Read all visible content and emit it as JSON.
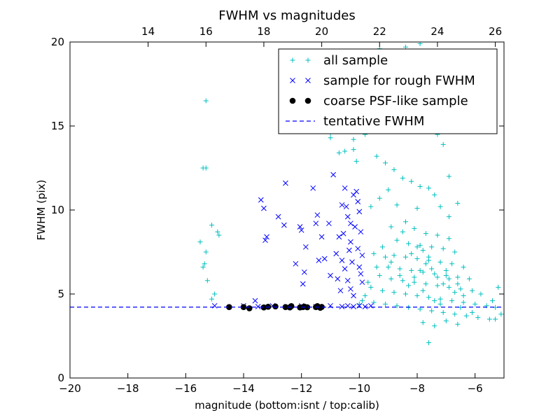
{
  "chart_data": {
    "type": "scatter",
    "title": "FWHM vs magnitudes",
    "xlabel": "magnitude (bottom:isnt / top:calib)",
    "ylabel": "FWHM (pix)",
    "xlim": [
      -20,
      -5
    ],
    "ylim": [
      0,
      20
    ],
    "x_ticks": [
      -20,
      -18,
      -16,
      -14,
      -12,
      -10,
      -8,
      -6
    ],
    "x_tick_labels": [
      "−20",
      "−18",
      "−16",
      "−14",
      "−12",
      "−10",
      "−8",
      "−6"
    ],
    "y_ticks": [
      0,
      5,
      10,
      15,
      20
    ],
    "y_tick_labels": [
      "0",
      "5",
      "10",
      "15",
      "20"
    ],
    "top_axis": {
      "offset": 31.3,
      "ticks": [
        14,
        16,
        18,
        20,
        22,
        24,
        26
      ],
      "tick_labels": [
        "14",
        "16",
        "18",
        "20",
        "22",
        "24",
        "26"
      ]
    },
    "grid": false,
    "legend_position": "top-right",
    "colors": {
      "all_sample": "#00bfbf",
      "rough_sample": "#0000ff",
      "psf_sample": "#000000",
      "tentative": "#0000ff"
    },
    "series": [
      {
        "name": "all sample",
        "marker": "plus",
        "points": [
          [
            -15.3,
            16.5
          ],
          [
            -15.3,
            12.5
          ],
          [
            -15.4,
            12.5
          ],
          [
            -15.5,
            8.1
          ],
          [
            -15.1,
            9.1
          ],
          [
            -14.9,
            8.7
          ],
          [
            -14.85,
            8.5
          ],
          [
            -15.4,
            6.6
          ],
          [
            -15.35,
            6.8
          ],
          [
            -15.25,
            5.8
          ],
          [
            -15.1,
            4.7
          ],
          [
            -15.0,
            5.0
          ],
          [
            -15.3,
            7.5
          ],
          [
            -11.0,
            14.6
          ],
          [
            -11.0,
            14.3
          ],
          [
            -10.5,
            13.5
          ],
          [
            -10.7,
            13.4
          ],
          [
            -10.2,
            13.6
          ],
          [
            -9.8,
            14.5
          ],
          [
            -10.1,
            12.9
          ],
          [
            -9.9,
            14.9
          ],
          [
            -10.2,
            14.2
          ],
          [
            -9.7,
            15.7
          ],
          [
            -9.3,
            19.6
          ],
          [
            -9.0,
            19.3
          ],
          [
            -8.9,
            18.6
          ],
          [
            -8.4,
            19.7
          ],
          [
            -7.9,
            19.9
          ],
          [
            -8.2,
            16.2
          ],
          [
            -8.6,
            17.6
          ],
          [
            -7.6,
            18.2
          ],
          [
            -7.8,
            16.9
          ],
          [
            -7.3,
            14.5
          ],
          [
            -7.1,
            13.9
          ],
          [
            -6.9,
            12.0
          ],
          [
            -9.4,
            13.2
          ],
          [
            -9.1,
            12.8
          ],
          [
            -8.8,
            12.4
          ],
          [
            -8.5,
            11.9
          ],
          [
            -8.2,
            11.7
          ],
          [
            -7.9,
            11.4
          ],
          [
            -7.6,
            11.3
          ],
          [
            -7.4,
            10.9
          ],
          [
            -9.0,
            11.2
          ],
          [
            -9.3,
            10.7
          ],
          [
            -8.7,
            10.3
          ],
          [
            -8.0,
            10.1
          ],
          [
            -7.2,
            10.2
          ],
          [
            -6.6,
            10.4
          ],
          [
            -6.9,
            9.6
          ],
          [
            -9.6,
            10.2
          ],
          [
            -8.4,
            9.3
          ],
          [
            -8.9,
            9.0
          ],
          [
            -8.5,
            8.7
          ],
          [
            -8.1,
            8.9
          ],
          [
            -7.7,
            8.6
          ],
          [
            -7.3,
            8.5
          ],
          [
            -6.9,
            8.3
          ],
          [
            -8.7,
            8.2
          ],
          [
            -8.3,
            8.0
          ],
          [
            -7.9,
            7.9
          ],
          [
            -7.5,
            7.8
          ],
          [
            -7.1,
            7.7
          ],
          [
            -6.7,
            7.5
          ],
          [
            -9.2,
            7.8
          ],
          [
            -9.5,
            7.4
          ],
          [
            -8.8,
            7.3
          ],
          [
            -8.4,
            7.2
          ],
          [
            -8.0,
            7.1
          ],
          [
            -7.6,
            7.0
          ],
          [
            -7.2,
            6.9
          ],
          [
            -6.8,
            6.8
          ],
          [
            -6.4,
            6.6
          ],
          [
            -9.0,
            6.6
          ],
          [
            -8.6,
            6.5
          ],
          [
            -8.2,
            6.4
          ],
          [
            -7.8,
            6.3
          ],
          [
            -7.4,
            6.2
          ],
          [
            -7.0,
            6.1
          ],
          [
            -6.6,
            6.0
          ],
          [
            -6.2,
            5.9
          ],
          [
            -9.3,
            6.1
          ],
          [
            -8.9,
            5.9
          ],
          [
            -8.5,
            5.8
          ],
          [
            -8.1,
            5.7
          ],
          [
            -7.7,
            5.6
          ],
          [
            -7.3,
            5.5
          ],
          [
            -6.9,
            5.4
          ],
          [
            -6.5,
            5.3
          ],
          [
            -6.1,
            5.2
          ],
          [
            -5.8,
            5.0
          ],
          [
            -9.6,
            5.4
          ],
          [
            -9.2,
            5.2
          ],
          [
            -8.8,
            5.1
          ],
          [
            -8.4,
            5.0
          ],
          [
            -8.0,
            4.9
          ],
          [
            -7.6,
            4.8
          ],
          [
            -7.2,
            4.7
          ],
          [
            -6.8,
            4.6
          ],
          [
            -6.4,
            4.5
          ],
          [
            -6.0,
            4.4
          ],
          [
            -5.6,
            4.3
          ],
          [
            -5.3,
            4.2
          ],
          [
            -9.9,
            4.6
          ],
          [
            -9.5,
            4.5
          ],
          [
            -9.1,
            4.4
          ],
          [
            -8.7,
            4.3
          ],
          [
            -8.3,
            4.2
          ],
          [
            -7.9,
            4.1
          ],
          [
            -7.5,
            4.0
          ],
          [
            -7.1,
            3.9
          ],
          [
            -6.7,
            3.8
          ],
          [
            -6.3,
            3.7
          ],
          [
            -5.9,
            3.6
          ],
          [
            -5.5,
            3.5
          ],
          [
            -7.8,
            3.3
          ],
          [
            -7.4,
            3.1
          ],
          [
            -7.0,
            3.4
          ],
          [
            -6.6,
            3.2
          ],
          [
            -7.6,
            2.1
          ],
          [
            -6.1,
            3.9
          ],
          [
            -5.4,
            4.6
          ],
          [
            -5.2,
            5.4
          ],
          [
            -5.1,
            3.8
          ],
          [
            -5.3,
            3.5
          ],
          [
            -7.5,
            6.5
          ],
          [
            -7.6,
            7.2
          ],
          [
            -7.7,
            6.8
          ],
          [
            -7.8,
            7.6
          ],
          [
            -7.9,
            6.4
          ],
          [
            -8.0,
            7.8
          ],
          [
            -8.1,
            6.0
          ],
          [
            -8.2,
            7.4
          ],
          [
            -7.3,
            6.0
          ],
          [
            -7.1,
            5.6
          ],
          [
            -6.9,
            5.9
          ],
          [
            -7.0,
            6.4
          ],
          [
            -6.7,
            5.1
          ],
          [
            -6.6,
            5.6
          ],
          [
            -6.4,
            4.9
          ],
          [
            -6.5,
            4.2
          ],
          [
            -7.2,
            4.4
          ],
          [
            -7.4,
            4.6
          ],
          [
            -7.8,
            5.2
          ],
          [
            -8.3,
            5.5
          ],
          [
            -8.6,
            6.1
          ],
          [
            -8.9,
            6.9
          ],
          [
            -9.1,
            7.2
          ],
          [
            -9.4,
            6.6
          ],
          [
            -9.7,
            5.7
          ],
          [
            -9.8,
            4.9
          ],
          [
            -10.0,
            4.4
          ]
        ]
      },
      {
        "name": "sample for rough FWHM",
        "marker": "x",
        "points": [
          [
            -15.0,
            4.3
          ],
          [
            -14.0,
            4.3
          ],
          [
            -13.5,
            4.25
          ],
          [
            -13.0,
            4.3
          ],
          [
            -12.5,
            4.25
          ],
          [
            -12.0,
            4.3
          ],
          [
            -11.5,
            4.25
          ],
          [
            -11.0,
            4.3
          ],
          [
            -10.6,
            4.25
          ],
          [
            -10.4,
            4.3
          ],
          [
            -10.2,
            4.25
          ],
          [
            -10.0,
            4.3
          ],
          [
            -9.8,
            4.25
          ],
          [
            -9.6,
            4.3
          ],
          [
            -13.4,
            10.6
          ],
          [
            -13.3,
            10.1
          ],
          [
            -12.8,
            9.6
          ],
          [
            -13.2,
            8.4
          ],
          [
            -13.25,
            8.2
          ],
          [
            -12.55,
            11.6
          ],
          [
            -12.6,
            9.1
          ],
          [
            -12.0,
            8.8
          ],
          [
            -12.05,
            9.0
          ],
          [
            -11.85,
            7.8
          ],
          [
            -12.2,
            6.8
          ],
          [
            -11.9,
            6.3
          ],
          [
            -11.95,
            5.6
          ],
          [
            -11.6,
            11.3
          ],
          [
            -11.45,
            9.7
          ],
          [
            -11.5,
            9.2
          ],
          [
            -11.3,
            8.4
          ],
          [
            -11.4,
            7.0
          ],
          [
            -11.2,
            7.1
          ],
          [
            -10.9,
            12.1
          ],
          [
            -11.05,
            9.2
          ],
          [
            -11.0,
            6.1
          ],
          [
            -10.8,
            7.4
          ],
          [
            -10.7,
            8.4
          ],
          [
            -10.6,
            7.0
          ],
          [
            -10.75,
            5.9
          ],
          [
            -10.65,
            5.2
          ],
          [
            -10.5,
            11.3
          ],
          [
            -10.45,
            10.2
          ],
          [
            -10.4,
            9.6
          ],
          [
            -10.55,
            8.6
          ],
          [
            -10.3,
            8.1
          ],
          [
            -10.35,
            7.6
          ],
          [
            -10.5,
            6.5
          ],
          [
            -10.25,
            6.9
          ],
          [
            -10.4,
            5.8
          ],
          [
            -10.3,
            5.3
          ],
          [
            -10.2,
            4.9
          ],
          [
            -10.1,
            11.1
          ],
          [
            -10.05,
            10.5
          ],
          [
            -10.0,
            9.9
          ],
          [
            -10.15,
            9.0
          ],
          [
            -9.95,
            8.7
          ],
          [
            -10.05,
            7.7
          ],
          [
            -9.9,
            7.3
          ],
          [
            -10.0,
            6.6
          ],
          [
            -9.95,
            6.2
          ],
          [
            -9.9,
            5.7
          ],
          [
            -10.2,
            10.9
          ],
          [
            -10.3,
            9.2
          ],
          [
            -10.6,
            10.3
          ],
          [
            -13.6,
            4.6
          ]
        ]
      },
      {
        "name": "coarse PSF-like sample",
        "marker": "dot",
        "points": [
          [
            -14.5,
            4.22
          ],
          [
            -14.0,
            4.22
          ],
          [
            -13.8,
            4.15
          ],
          [
            -13.3,
            4.2
          ],
          [
            -13.15,
            4.24
          ],
          [
            -12.9,
            4.26
          ],
          [
            -12.55,
            4.22
          ],
          [
            -12.4,
            4.2
          ],
          [
            -12.35,
            4.28
          ],
          [
            -12.05,
            4.2
          ],
          [
            -11.95,
            4.22
          ],
          [
            -11.9,
            4.25
          ],
          [
            -11.8,
            4.21
          ],
          [
            -11.5,
            4.22
          ],
          [
            -11.45,
            4.28
          ],
          [
            -11.35,
            4.18
          ],
          [
            -11.3,
            4.23
          ]
        ]
      },
      {
        "name": "tentative FWHM",
        "marker": "dashed-line",
        "y": 4.22
      }
    ]
  }
}
